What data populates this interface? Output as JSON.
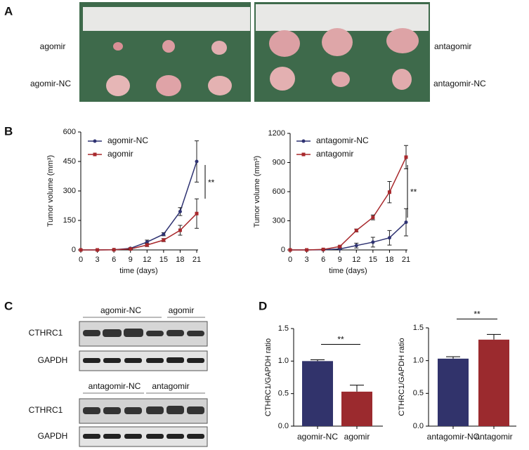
{
  "panel_labels": [
    "A",
    "B",
    "C",
    "D"
  ],
  "photos": {
    "left_labels": [
      "agomir",
      "agomir-NC"
    ],
    "right_labels": [
      "antagomir",
      "antagomir-NC"
    ]
  },
  "blots": [
    {
      "groups": [
        "agomir-NC",
        "agomir"
      ],
      "rows": [
        "CTHRC1",
        "GAPDH"
      ]
    },
    {
      "groups": [
        "antagomir-NC",
        "antagomir"
      ],
      "rows": [
        "CTHRC1",
        "GAPDH"
      ]
    }
  ],
  "chart_data": [
    {
      "type": "line",
      "x_label": "time (days)",
      "y_label": "Tumor volume (mm³)",
      "x": [
        0,
        3,
        6,
        9,
        12,
        15,
        18,
        21
      ],
      "xlim": [
        0,
        21
      ],
      "xticks": [
        0,
        3,
        6,
        9,
        12,
        15,
        18,
        21
      ],
      "ylim": [
        0,
        600
      ],
      "yticks": [
        0,
        150,
        300,
        450,
        600
      ],
      "grid": false,
      "annotation": "**",
      "series": [
        {
          "name": "agomir-NC",
          "color": "#2f3372",
          "marker": "circle",
          "values": [
            0,
            0,
            1,
            8,
            40,
            80,
            195,
            450
          ],
          "errors": [
            0,
            0,
            1,
            3,
            10,
            8,
            20,
            105
          ]
        },
        {
          "name": "agomir",
          "color": "#a8282c",
          "marker": "square",
          "values": [
            0,
            0,
            1,
            5,
            25,
            50,
            100,
            185
          ],
          "errors": [
            0,
            0,
            1,
            2,
            8,
            8,
            25,
            75
          ]
        }
      ]
    },
    {
      "type": "line",
      "x_label": "time (days)",
      "y_label": "Tumor volume (mm³)",
      "x": [
        0,
        3,
        6,
        9,
        12,
        15,
        18,
        21
      ],
      "xlim": [
        0,
        21
      ],
      "xticks": [
        0,
        3,
        6,
        9,
        12,
        15,
        18,
        21
      ],
      "ylim": [
        0,
        1200
      ],
      "yticks": [
        0,
        300,
        600,
        900,
        1200
      ],
      "grid": false,
      "annotation": "**",
      "series": [
        {
          "name": "antagomir-NC",
          "color": "#2f3372",
          "marker": "circle",
          "values": [
            0,
            0,
            2,
            10,
            45,
            80,
            125,
            285
          ],
          "errors": [
            0,
            0,
            1,
            5,
            25,
            50,
            75,
            140
          ]
        },
        {
          "name": "antagomir",
          "color": "#a8282c",
          "marker": "square",
          "values": [
            0,
            0,
            5,
            35,
            200,
            335,
            595,
            955
          ],
          "errors": [
            0,
            0,
            2,
            8,
            15,
            25,
            110,
            120
          ]
        }
      ]
    },
    {
      "type": "bar",
      "y_label": "CTHRC1/GAPDH ratio",
      "categories": [
        "agomir-NC",
        "agomir"
      ],
      "values": [
        1.0,
        0.53
      ],
      "errors": [
        0.02,
        0.1
      ],
      "colors": [
        "#31336b",
        "#9b2a2e"
      ],
      "ylim": [
        0,
        1.5
      ],
      "yticks": [
        {
          "value": 0,
          "label": "0.0"
        },
        {
          "value": 0.5,
          "label": "0.5"
        },
        {
          "value": 1,
          "label": "1.0"
        },
        {
          "value": 1.5,
          "label": "1.5"
        }
      ],
      "grid": false,
      "annotation": "**"
    },
    {
      "type": "bar",
      "y_label": "CTHRC1/GAPDH ratio",
      "categories": [
        "antagomir-NC",
        "antagomir"
      ],
      "values": [
        1.03,
        1.32
      ],
      "errors": [
        0.03,
        0.08
      ],
      "colors": [
        "#31336b",
        "#9b2a2e"
      ],
      "ylim": [
        0,
        1.5
      ],
      "yticks": [
        {
          "value": 0,
          "label": "0.0"
        },
        {
          "value": 0.5,
          "label": "0.5"
        },
        {
          "value": 1,
          "label": "1.0"
        },
        {
          "value": 1.5,
          "label": "1.5"
        }
      ],
      "grid": false,
      "annotation": "**"
    }
  ]
}
